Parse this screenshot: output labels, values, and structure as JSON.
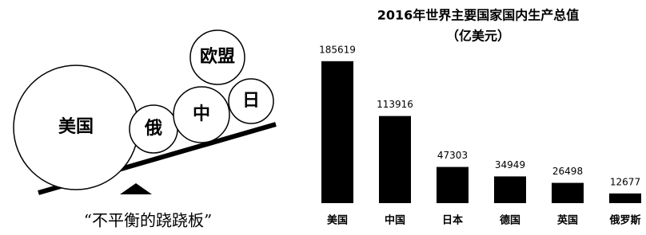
{
  "illustration": {
    "labels": [
      "美国",
      "俄",
      "中",
      "日",
      "欧盟"
    ],
    "caption": "“不平衡的跷跷板”"
  },
  "chart_data": {
    "type": "bar",
    "title": "2016年世界主要国家国内生产总值",
    "subtitle": "（亿美元）",
    "categories": [
      "美国",
      "中国",
      "日本",
      "德国",
      "英国",
      "俄罗斯"
    ],
    "values": [
      185619,
      113916,
      47303,
      34949,
      26498,
      12677
    ],
    "color": "#000000",
    "ylim": [
      0,
      200000
    ]
  }
}
